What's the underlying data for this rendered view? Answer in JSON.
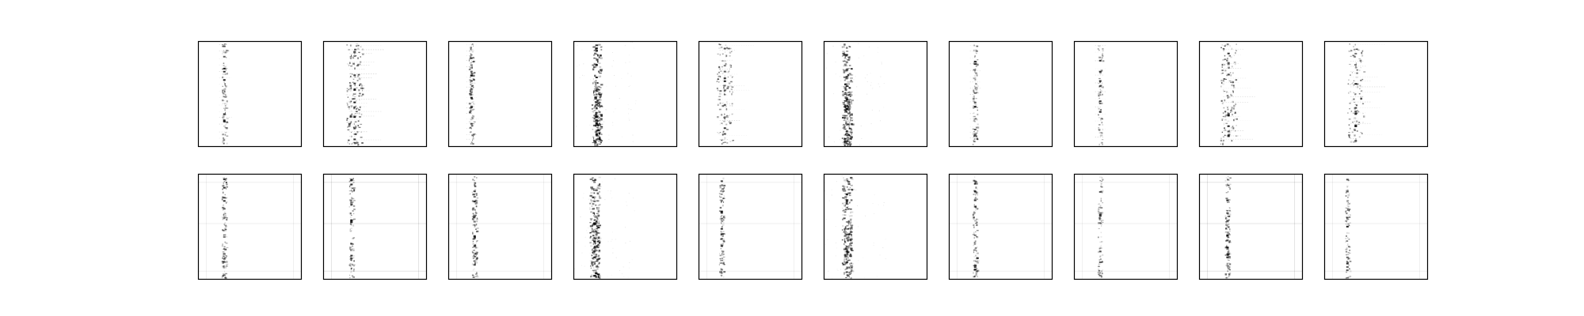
{
  "figure": {
    "rows": 2,
    "cols": 10,
    "colors": {
      "background": "#ffffff",
      "frame": "#000000",
      "ink": "#000000"
    },
    "panels": [
      {
        "row": 0,
        "col": 0,
        "style": "sparse-column",
        "column_pos": 0.25,
        "density": 0.35
      },
      {
        "row": 0,
        "col": 1,
        "style": "dense-streaks",
        "column_pos": 0.3,
        "density": 0.8
      },
      {
        "row": 0,
        "col": 2,
        "style": "sparse-column",
        "column_pos": 0.22,
        "density": 0.55
      },
      {
        "row": 0,
        "col": 3,
        "style": "smear-band",
        "column_pos": 0.22,
        "density": 0.85
      },
      {
        "row": 0,
        "col": 4,
        "style": "dense-streaks",
        "column_pos": 0.25,
        "density": 0.6
      },
      {
        "row": 0,
        "col": 5,
        "style": "smear-band",
        "column_pos": 0.22,
        "density": 0.9
      },
      {
        "row": 0,
        "col": 6,
        "style": "sparse-column",
        "column_pos": 0.25,
        "density": 0.4
      },
      {
        "row": 0,
        "col": 7,
        "style": "sparse-column",
        "column_pos": 0.25,
        "density": 0.25
      },
      {
        "row": 0,
        "col": 8,
        "style": "dense-streaks",
        "column_pos": 0.28,
        "density": 0.65
      },
      {
        "row": 0,
        "col": 9,
        "style": "dense-streaks",
        "column_pos": 0.3,
        "density": 0.55
      },
      {
        "row": 1,
        "col": 0,
        "style": "faint-column",
        "column_pos": 0.25,
        "density": 0.5
      },
      {
        "row": 1,
        "col": 1,
        "style": "faint-grid",
        "column_pos": 0.27,
        "density": 0.45
      },
      {
        "row": 1,
        "col": 2,
        "style": "faint-column",
        "column_pos": 0.25,
        "density": 0.6
      },
      {
        "row": 1,
        "col": 3,
        "style": "smear-band",
        "column_pos": 0.2,
        "density": 0.8
      },
      {
        "row": 1,
        "col": 4,
        "style": "faint-column",
        "column_pos": 0.22,
        "density": 0.5
      },
      {
        "row": 1,
        "col": 5,
        "style": "smear-band",
        "column_pos": 0.22,
        "density": 0.75
      },
      {
        "row": 1,
        "col": 6,
        "style": "faint-column",
        "column_pos": 0.25,
        "density": 0.45
      },
      {
        "row": 1,
        "col": 7,
        "style": "faint-column",
        "column_pos": 0.25,
        "density": 0.3
      },
      {
        "row": 1,
        "col": 8,
        "style": "faint-grid",
        "column_pos": 0.27,
        "density": 0.55
      },
      {
        "row": 1,
        "col": 9,
        "style": "faint-column",
        "column_pos": 0.22,
        "density": 0.4
      }
    ]
  }
}
